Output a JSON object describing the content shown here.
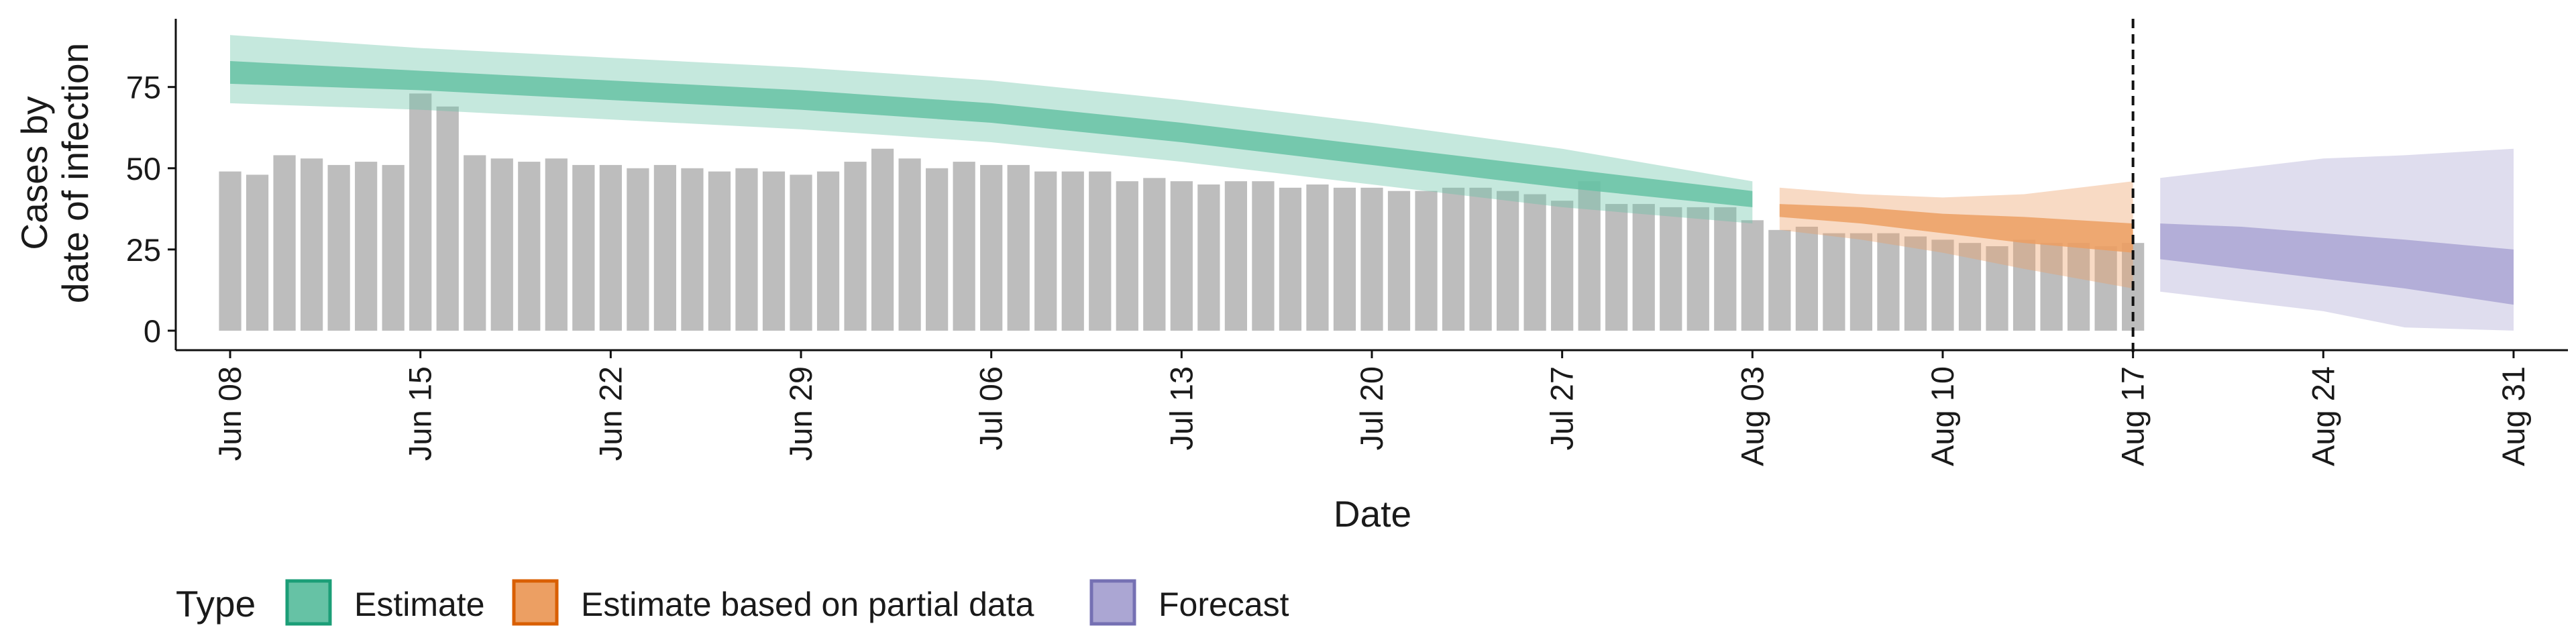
{
  "chart_data": {
    "type": "bar",
    "xlabel": "Date",
    "ylabel": [
      "Cases by",
      "date of infection"
    ],
    "ylim": [
      -6,
      96
    ],
    "yticks": [
      0,
      25,
      50,
      75
    ],
    "xlim": [
      "2020-06-06",
      "2020-09-02"
    ],
    "xticks": [
      "2020-06-08",
      "2020-06-15",
      "2020-06-22",
      "2020-06-29",
      "2020-07-06",
      "2020-07-13",
      "2020-07-20",
      "2020-07-27",
      "2020-08-03",
      "2020-08-10",
      "2020-08-17",
      "2020-08-24",
      "2020-08-31"
    ],
    "xtick_labels": [
      "Jun 08",
      "Jun 15",
      "Jun 22",
      "Jun 29",
      "Jul 06",
      "Jul 13",
      "Jul 20",
      "Jul 27",
      "Aug 03",
      "Aug 10",
      "Aug 17",
      "Aug 24",
      "Aug 31"
    ],
    "vline_date": "2020-08-17",
    "legend": {
      "title": "Type",
      "position": "bottom",
      "items": [
        {
          "label": "Estimate",
          "fill": "#66c2a5",
          "stroke": "#1b9e77"
        },
        {
          "label": "Estimate based on partial data",
          "fill": "#ec9f63",
          "stroke": "#d95f02"
        },
        {
          "label": "Forecast",
          "fill": "#aba6d3",
          "stroke": "#7570b3"
        }
      ]
    },
    "bars": {
      "start_date": "2020-06-08",
      "color": "#bdbdbd",
      "values": [
        49,
        48,
        54,
        53,
        51,
        52,
        51,
        73,
        69,
        54,
        53,
        52,
        53,
        51,
        51,
        50,
        51,
        50,
        49,
        50,
        49,
        48,
        49,
        52,
        56,
        53,
        50,
        52,
        51,
        51,
        49,
        49,
        49,
        46,
        47,
        46,
        45,
        46,
        46,
        44,
        45,
        44,
        44,
        43,
        43,
        44,
        44,
        43,
        42,
        40,
        46,
        39,
        39,
        38,
        38,
        38,
        34,
        31,
        32,
        30,
        30,
        30,
        29,
        28,
        27,
        26,
        28,
        27,
        27,
        26,
        27
      ]
    },
    "series": [
      {
        "name": "Estimate",
        "color": "#66c2a5",
        "x": [
          "2020-06-08",
          "2020-06-15",
          "2020-06-22",
          "2020-06-29",
          "2020-07-06",
          "2020-07-13",
          "2020-07-20",
          "2020-07-27",
          "2020-08-03"
        ],
        "outer_lower": [
          70,
          68,
          65,
          62,
          58,
          52,
          45,
          38,
          33
        ],
        "outer_upper": [
          91,
          87,
          84,
          81,
          77,
          71,
          64,
          56,
          46
        ],
        "inner_lower": [
          76,
          74,
          71,
          68,
          64,
          58,
          51,
          44,
          38
        ],
        "inner_upper": [
          83,
          80,
          77,
          74,
          70,
          64,
          57,
          50,
          43
        ]
      },
      {
        "name": "Estimate based on partial data",
        "color": "#ec9f63",
        "x": [
          "2020-08-04",
          "2020-08-07",
          "2020-08-10",
          "2020-08-13",
          "2020-08-17"
        ],
        "outer_lower": [
          31,
          28,
          24,
          19,
          13
        ],
        "outer_upper": [
          44,
          42,
          41,
          42,
          46
        ],
        "inner_lower": [
          35,
          33,
          30,
          27,
          24
        ],
        "inner_upper": [
          39,
          38,
          36,
          35,
          33
        ]
      },
      {
        "name": "Forecast",
        "color": "#aba6d3",
        "x": [
          "2020-08-18",
          "2020-08-21",
          "2020-08-24",
          "2020-08-27",
          "2020-08-31"
        ],
        "outer_lower": [
          12,
          9,
          6,
          1,
          0
        ],
        "outer_upper": [
          47,
          50,
          53,
          54,
          56
        ],
        "inner_lower": [
          22,
          19,
          16,
          13,
          8
        ],
        "inner_upper": [
          33,
          32,
          30,
          28,
          25
        ]
      }
    ]
  }
}
